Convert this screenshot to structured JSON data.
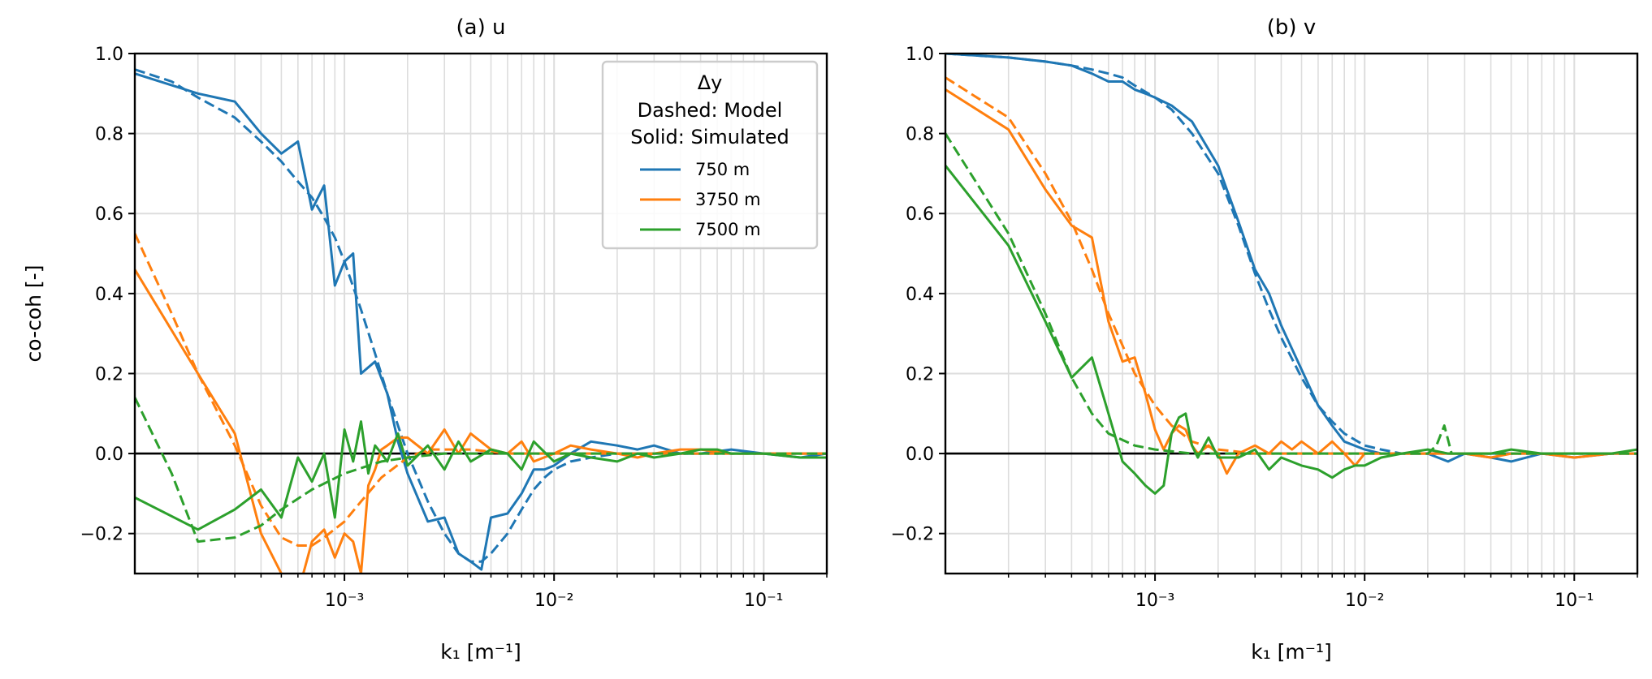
{
  "colors": {
    "series_750": "#1f77b4",
    "series_3750": "#ff7f0e",
    "series_7500": "#2ca02c"
  },
  "chart_data": [
    {
      "type": "line",
      "title": "(a) u",
      "xlabel": "k₁ [m⁻¹]",
      "ylabel": "co-coh [-]",
      "xscale": "log",
      "xlim": [
        0.0001,
        0.2
      ],
      "ylim": [
        -0.3,
        1.0
      ],
      "yticks": [
        "−0.2",
        "0.0",
        "0.2",
        "0.4",
        "0.6",
        "0.8",
        "1.0"
      ],
      "xticks": [
        "10⁻³",
        "10⁻²",
        "10⁻¹"
      ],
      "grid": true,
      "legend": {
        "placement": "top-right",
        "title": "Δy",
        "lines": [
          "Dashed: Model",
          "Solid: Simulated"
        ],
        "entries": [
          "750 m",
          "3750 m",
          "7500 m"
        ]
      },
      "series": [
        {
          "name": "750 m",
          "style": "dashed",
          "x": [
            0.0001,
            0.00015,
            0.0002,
            0.0003,
            0.0004,
            0.0005,
            0.0006,
            0.0007,
            0.0008,
            0.0009,
            0.001,
            0.0012,
            0.0014,
            0.0016,
            0.0018,
            0.002,
            0.0025,
            0.003,
            0.0035,
            0.004,
            0.0045,
            0.005,
            0.006,
            0.007,
            0.008,
            0.009,
            0.01,
            0.012,
            0.015,
            0.02,
            0.03,
            0.05,
            0.1,
            0.2
          ],
          "y": [
            0.96,
            0.93,
            0.89,
            0.84,
            0.78,
            0.73,
            0.68,
            0.64,
            0.59,
            0.54,
            0.48,
            0.36,
            0.25,
            0.15,
            0.07,
            0.0,
            -0.12,
            -0.2,
            -0.25,
            -0.27,
            -0.27,
            -0.25,
            -0.2,
            -0.14,
            -0.09,
            -0.06,
            -0.04,
            -0.02,
            -0.01,
            0.0,
            0.0,
            0.0,
            0.0,
            0.0
          ]
        },
        {
          "name": "750 m",
          "style": "solid",
          "x": [
            0.0001,
            0.0002,
            0.0003,
            0.0004,
            0.0005,
            0.0006,
            0.0007,
            0.0008,
            0.0009,
            0.001,
            0.0011,
            0.0012,
            0.0014,
            0.0016,
            0.0018,
            0.002,
            0.0025,
            0.003,
            0.0035,
            0.004,
            0.0045,
            0.005,
            0.006,
            0.007,
            0.008,
            0.009,
            0.01,
            0.012,
            0.015,
            0.02,
            0.025,
            0.03,
            0.04,
            0.05,
            0.07,
            0.1,
            0.15,
            0.2
          ],
          "y": [
            0.95,
            0.9,
            0.88,
            0.8,
            0.75,
            0.78,
            0.61,
            0.67,
            0.42,
            0.48,
            0.5,
            0.2,
            0.23,
            0.15,
            0.03,
            -0.05,
            -0.17,
            -0.16,
            -0.25,
            -0.27,
            -0.29,
            -0.16,
            -0.15,
            -0.1,
            -0.04,
            -0.04,
            -0.03,
            0.0,
            0.03,
            0.02,
            0.01,
            0.02,
            0.0,
            0.0,
            0.01,
            0.0,
            -0.01,
            0.0
          ]
        },
        {
          "name": "3750 m",
          "style": "dashed",
          "x": [
            0.0001,
            0.00015,
            0.0002,
            0.0003,
            0.0004,
            0.0005,
            0.0006,
            0.0007,
            0.0008,
            0.001,
            0.0012,
            0.0015,
            0.002,
            0.0025,
            0.003,
            0.004,
            0.006,
            0.01,
            0.02,
            0.05,
            0.2
          ],
          "y": [
            0.55,
            0.35,
            0.2,
            0.02,
            -0.13,
            -0.21,
            -0.23,
            -0.23,
            -0.21,
            -0.17,
            -0.12,
            -0.06,
            -0.01,
            0.01,
            0.01,
            0.01,
            0.0,
            0.0,
            0.0,
            0.0,
            0.0
          ]
        },
        {
          "name": "3750 m",
          "style": "solid",
          "x": [
            0.0001,
            0.0002,
            0.0003,
            0.0004,
            0.0005,
            0.0006,
            0.0007,
            0.0008,
            0.0009,
            0.001,
            0.0011,
            0.0012,
            0.0013,
            0.0014,
            0.0015,
            0.0016,
            0.0018,
            0.002,
            0.0025,
            0.003,
            0.0035,
            0.004,
            0.005,
            0.006,
            0.007,
            0.008,
            0.01,
            0.012,
            0.015,
            0.02,
            0.025,
            0.03,
            0.04,
            0.05,
            0.07,
            0.1,
            0.15,
            0.2
          ],
          "y": [
            0.46,
            0.2,
            0.05,
            -0.2,
            -0.3,
            -0.35,
            -0.22,
            -0.19,
            -0.26,
            -0.2,
            -0.22,
            -0.3,
            -0.08,
            -0.04,
            0.01,
            0.02,
            0.04,
            0.04,
            0.0,
            0.06,
            0.0,
            0.05,
            0.01,
            0.0,
            0.03,
            -0.02,
            0.0,
            0.02,
            0.01,
            0.0,
            -0.01,
            0.0,
            0.01,
            0.01,
            0.0,
            0.0,
            0.0,
            0.0
          ]
        },
        {
          "name": "7500 m",
          "style": "dashed",
          "x": [
            0.0001,
            0.00015,
            0.0002,
            0.0003,
            0.0004,
            0.0005,
            0.0007,
            0.001,
            0.0015,
            0.002,
            0.003,
            0.005,
            0.01,
            0.02,
            0.05,
            0.2
          ],
          "y": [
            0.14,
            -0.05,
            -0.22,
            -0.21,
            -0.18,
            -0.14,
            -0.09,
            -0.05,
            -0.02,
            -0.01,
            0.0,
            0.0,
            0.0,
            0.0,
            0.0,
            0.0
          ]
        },
        {
          "name": "7500 m",
          "style": "solid",
          "x": [
            0.0001,
            0.0002,
            0.0003,
            0.0004,
            0.0005,
            0.0006,
            0.0007,
            0.0008,
            0.0009,
            0.001,
            0.0011,
            0.0012,
            0.0013,
            0.0014,
            0.0015,
            0.0016,
            0.0018,
            0.002,
            0.0025,
            0.003,
            0.0035,
            0.004,
            0.005,
            0.006,
            0.007,
            0.008,
            0.01,
            0.012,
            0.015,
            0.02,
            0.025,
            0.03,
            0.04,
            0.05,
            0.06,
            0.07,
            0.1,
            0.15,
            0.2
          ],
          "y": [
            -0.11,
            -0.19,
            -0.14,
            -0.09,
            -0.16,
            -0.01,
            -0.07,
            0.0,
            -0.16,
            0.06,
            -0.02,
            0.08,
            -0.05,
            0.02,
            0.0,
            -0.02,
            0.05,
            -0.03,
            0.02,
            -0.04,
            0.03,
            -0.02,
            0.01,
            0.0,
            -0.04,
            0.03,
            -0.02,
            0.0,
            -0.01,
            -0.02,
            0.0,
            -0.01,
            0.0,
            0.01,
            0.01,
            0.0,
            0.0,
            -0.01,
            -0.01
          ]
        }
      ]
    },
    {
      "type": "line",
      "title": "(b) v",
      "xlabel": "k₁ [m⁻¹]",
      "ylabel": "",
      "xscale": "log",
      "xlim": [
        0.0001,
        0.2
      ],
      "ylim": [
        -0.3,
        1.0
      ],
      "yticks": [
        "−0.2",
        "0.0",
        "0.2",
        "0.4",
        "0.6",
        "0.8",
        "1.0"
      ],
      "xticks": [
        "10⁻³",
        "10⁻²",
        "10⁻¹"
      ],
      "grid": true,
      "series": [
        {
          "name": "750 m",
          "style": "dashed",
          "x": [
            0.0001,
            0.0002,
            0.0003,
            0.0004,
            0.0005,
            0.0006,
            0.0007,
            0.0008,
            0.001,
            0.0012,
            0.0015,
            0.002,
            0.0025,
            0.003,
            0.0035,
            0.004,
            0.005,
            0.006,
            0.007,
            0.008,
            0.01,
            0.012,
            0.015,
            0.02,
            0.05,
            0.2
          ],
          "y": [
            1.0,
            0.99,
            0.98,
            0.97,
            0.96,
            0.95,
            0.94,
            0.92,
            0.89,
            0.86,
            0.8,
            0.7,
            0.57,
            0.45,
            0.36,
            0.29,
            0.19,
            0.12,
            0.08,
            0.05,
            0.02,
            0.01,
            0.0,
            0.0,
            0.0,
            0.0
          ]
        },
        {
          "name": "750 m",
          "style": "solid",
          "x": [
            0.0001,
            0.0002,
            0.0003,
            0.0004,
            0.0005,
            0.0006,
            0.0007,
            0.0008,
            0.0009,
            0.001,
            0.0012,
            0.0015,
            0.002,
            0.0025,
            0.003,
            0.0035,
            0.004,
            0.005,
            0.006,
            0.007,
            0.008,
            0.01,
            0.012,
            0.015,
            0.02,
            0.025,
            0.03,
            0.04,
            0.05,
            0.07,
            0.1,
            0.15,
            0.2
          ],
          "y": [
            1.0,
            0.99,
            0.98,
            0.97,
            0.95,
            0.93,
            0.93,
            0.91,
            0.9,
            0.89,
            0.87,
            0.83,
            0.72,
            0.58,
            0.46,
            0.4,
            0.32,
            0.21,
            0.12,
            0.07,
            0.03,
            0.01,
            0.0,
            0.0,
            0.0,
            -0.02,
            0.0,
            -0.01,
            -0.02,
            0.0,
            -0.01,
            0.0,
            0.0
          ]
        },
        {
          "name": "3750 m",
          "style": "dashed",
          "x": [
            0.0001,
            0.0002,
            0.0003,
            0.0004,
            0.0005,
            0.0006,
            0.0007,
            0.0008,
            0.001,
            0.0012,
            0.0015,
            0.002,
            0.003,
            0.005,
            0.01,
            0.02,
            0.05,
            0.2
          ],
          "y": [
            0.94,
            0.84,
            0.7,
            0.58,
            0.46,
            0.35,
            0.27,
            0.2,
            0.12,
            0.07,
            0.03,
            0.01,
            0.0,
            0.0,
            0.0,
            0.0,
            0.0,
            0.0
          ]
        },
        {
          "name": "3750 m",
          "style": "solid",
          "x": [
            0.0001,
            0.0002,
            0.0003,
            0.0004,
            0.0005,
            0.0006,
            0.0007,
            0.0008,
            0.0009,
            0.001,
            0.0011,
            0.0012,
            0.0013,
            0.0014,
            0.0015,
            0.0016,
            0.0018,
            0.002,
            0.0022,
            0.0025,
            0.003,
            0.0035,
            0.004,
            0.0045,
            0.005,
            0.006,
            0.007,
            0.008,
            0.009,
            0.01,
            0.012,
            0.015,
            0.02,
            0.025,
            0.03,
            0.04,
            0.05,
            0.07,
            0.1,
            0.15,
            0.2
          ],
          "y": [
            0.91,
            0.81,
            0.66,
            0.57,
            0.54,
            0.33,
            0.23,
            0.24,
            0.15,
            0.06,
            0.01,
            0.05,
            0.07,
            0.06,
            0.02,
            0.0,
            0.02,
            0.0,
            -0.05,
            0.0,
            0.02,
            0.0,
            0.03,
            0.01,
            0.03,
            0.0,
            0.03,
            0.0,
            -0.03,
            0.0,
            0.0,
            0.0,
            0.0,
            0.0,
            0.0,
            -0.01,
            0.0,
            0.0,
            -0.01,
            0.0,
            0.0
          ]
        },
        {
          "name": "7500 m",
          "style": "dashed",
          "x": [
            0.0001,
            0.0002,
            0.0003,
            0.0004,
            0.0005,
            0.0006,
            0.0008,
            0.001,
            0.0015,
            0.002,
            0.005,
            0.01,
            0.02,
            0.022,
            0.024,
            0.026,
            0.03,
            0.05,
            0.1,
            0.2
          ],
          "y": [
            0.8,
            0.55,
            0.35,
            0.19,
            0.1,
            0.05,
            0.02,
            0.01,
            0.0,
            0.0,
            0.0,
            0.0,
            0.0,
            0.02,
            0.07,
            0.0,
            0.0,
            0.0,
            0.0,
            0.0
          ]
        },
        {
          "name": "7500 m",
          "style": "solid",
          "x": [
            0.0001,
            0.0002,
            0.0003,
            0.0004,
            0.0005,
            0.0006,
            0.0007,
            0.0008,
            0.0009,
            0.001,
            0.0011,
            0.0012,
            0.0013,
            0.0014,
            0.0015,
            0.0016,
            0.0018,
            0.002,
            0.0025,
            0.003,
            0.0035,
            0.004,
            0.005,
            0.006,
            0.007,
            0.008,
            0.009,
            0.01,
            0.012,
            0.015,
            0.02,
            0.025,
            0.03,
            0.04,
            0.05,
            0.07,
            0.1,
            0.15,
            0.2
          ],
          "y": [
            0.72,
            0.52,
            0.33,
            0.19,
            0.24,
            0.1,
            -0.02,
            -0.05,
            -0.08,
            -0.1,
            -0.08,
            0.05,
            0.09,
            0.1,
            0.02,
            -0.01,
            0.04,
            -0.01,
            -0.01,
            0.01,
            -0.04,
            -0.01,
            -0.03,
            -0.04,
            -0.06,
            -0.04,
            -0.03,
            -0.03,
            -0.01,
            0.0,
            0.01,
            0.0,
            0.0,
            0.0,
            0.01,
            0.0,
            0.0,
            0.0,
            0.01
          ]
        }
      ]
    }
  ]
}
